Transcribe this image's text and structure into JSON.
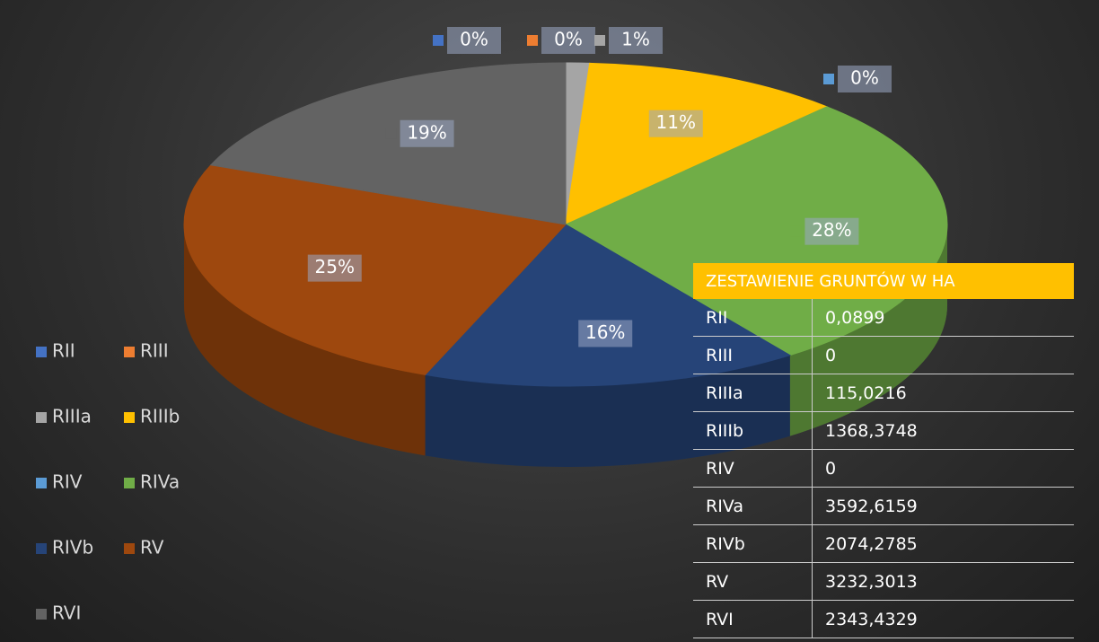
{
  "chart_data": {
    "type": "pie",
    "categories": [
      "RII",
      "RIII",
      "RIIIa",
      "RIIIb",
      "RIV",
      "RIVa",
      "RIVb",
      "RV",
      "RVI"
    ],
    "values": [
      0,
      0,
      1,
      11,
      0,
      28,
      16,
      25,
      19
    ],
    "value_labels": [
      "0%",
      "0%",
      "1%",
      "11%",
      "0%",
      "28%",
      "16%",
      "25%",
      "19%"
    ],
    "colors": [
      "#4472c4",
      "#ed7d31",
      "#a5a5a5",
      "#ffc000",
      "#5b9bd5",
      "#70ad47",
      "#264478",
      "#9e480e",
      "#636363"
    ],
    "legend": "left"
  },
  "table": {
    "title": "ZESTAWIENIE GRUNTÓW W HA",
    "rows": [
      [
        "RII",
        "0,0899"
      ],
      [
        "RIII",
        "0"
      ],
      [
        "RIIIa",
        "115,0216"
      ],
      [
        "RIIIb",
        "1368,3748"
      ],
      [
        "RIV",
        "0"
      ],
      [
        "RIVa",
        "3592,6159"
      ],
      [
        "RIVb",
        "2074,2785"
      ],
      [
        "RV",
        "3232,3013"
      ],
      [
        "RVI",
        "2343,4329"
      ]
    ]
  }
}
